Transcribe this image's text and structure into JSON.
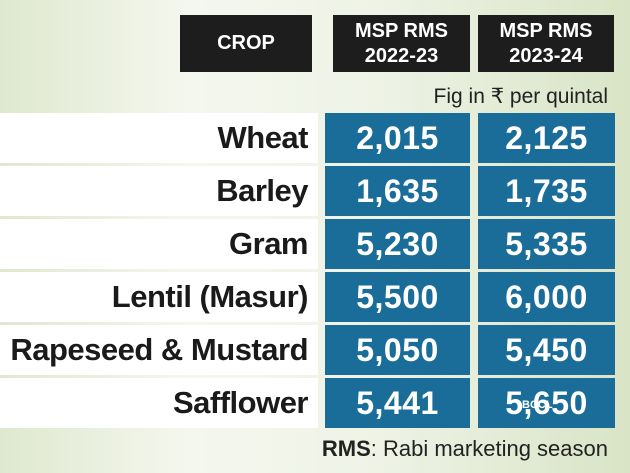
{
  "header": {
    "columns": [
      [
        "CROP"
      ],
      [
        "MSP RMS",
        "2022-23"
      ],
      [
        "MSP RMS",
        "2023-24"
      ]
    ]
  },
  "note": "Fig in ₹ per quintal",
  "table": {
    "rows": [
      [
        "Wheat",
        "2,015",
        "2,125"
      ],
      [
        "Barley",
        "1,635",
        "1,735"
      ],
      [
        "Gram",
        "5,230",
        "5,335"
      ],
      [
        "Lentil (Masur)",
        "5,500",
        "6,000"
      ],
      [
        "Rapeseed & Mustard",
        "5,050",
        "5,450"
      ],
      [
        "Safflower",
        "5,441",
        "5,650"
      ]
    ]
  },
  "footer": {
    "abbr": "RMS",
    "text": ": Rabi marketing season"
  },
  "watermark": "BCCL"
}
